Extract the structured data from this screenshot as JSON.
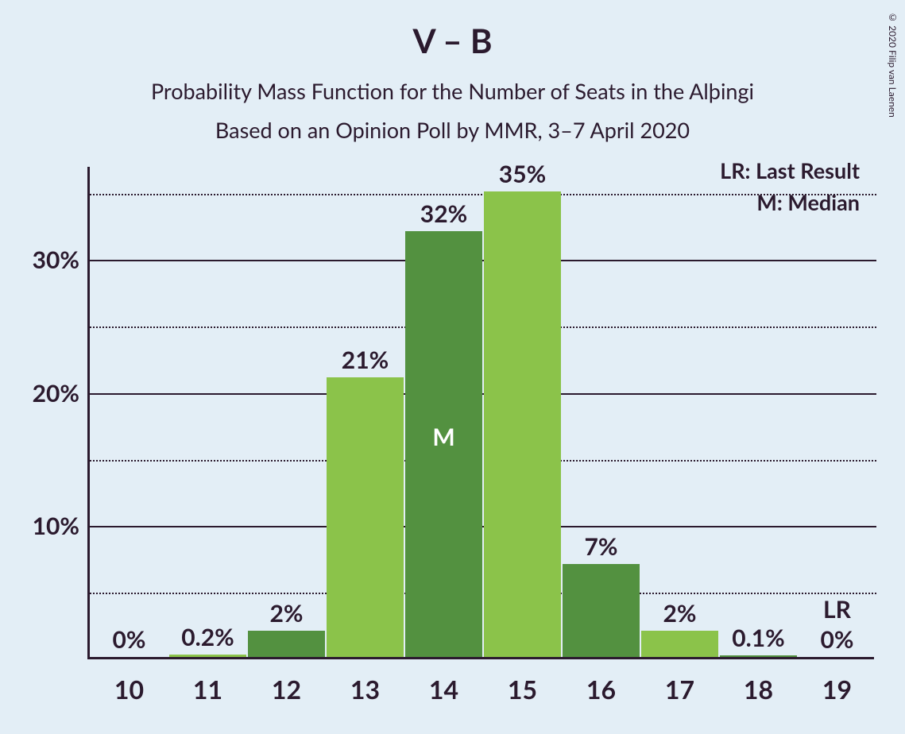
{
  "copyright": "© 2020 Filip van Laenen",
  "title": "V – B",
  "subtitle1": "Probability Mass Function for the Number of Seats in the Alþingi",
  "subtitle2": "Based on an Opinion Poll by MMR, 3–7 April 2020",
  "chart": {
    "type": "bar",
    "background_color": "#e3eef6",
    "text_color": "#2b1a2e",
    "title_fontsize": 42,
    "subtitle_fontsize": 27,
    "axis_color": "#2b1a2e",
    "grid_major_color": "#2b1a2e",
    "grid_minor_style": "dotted",
    "ylim": [
      0,
      37
    ],
    "yticks_major": [
      10,
      20,
      30
    ],
    "yticks_minor": [
      5,
      15,
      25,
      35
    ],
    "ytick_labels": [
      "10%",
      "20%",
      "30%"
    ],
    "ylabel_fontsize": 30,
    "xlabel_fontsize": 32,
    "barlabel_fontsize": 30,
    "bar_width_ratio": 0.98,
    "categories": [
      "10",
      "11",
      "12",
      "13",
      "14",
      "15",
      "16",
      "17",
      "18",
      "19"
    ],
    "values": [
      0,
      0.2,
      2,
      21,
      32,
      35,
      7,
      2,
      0.1,
      0
    ],
    "value_labels": [
      "0%",
      "0.2%",
      "2%",
      "21%",
      "32%",
      "35%",
      "7%",
      "2%",
      "0.1%",
      "0%"
    ],
    "colors": [
      "#8bc34a",
      "#8bc34a",
      "#539140",
      "#8bc34a",
      "#539140",
      "#8bc34a",
      "#539140",
      "#8bc34a",
      "#539140",
      "#8bc34a"
    ],
    "median_index": 4,
    "median_marker": "M",
    "median_marker_color": "#ffffff",
    "lr_index": 9,
    "lr_marker": "LR",
    "lr_marker_color": "#2b1a2e"
  },
  "legend": {
    "lr": "LR: Last Result",
    "m": "M: Median"
  }
}
